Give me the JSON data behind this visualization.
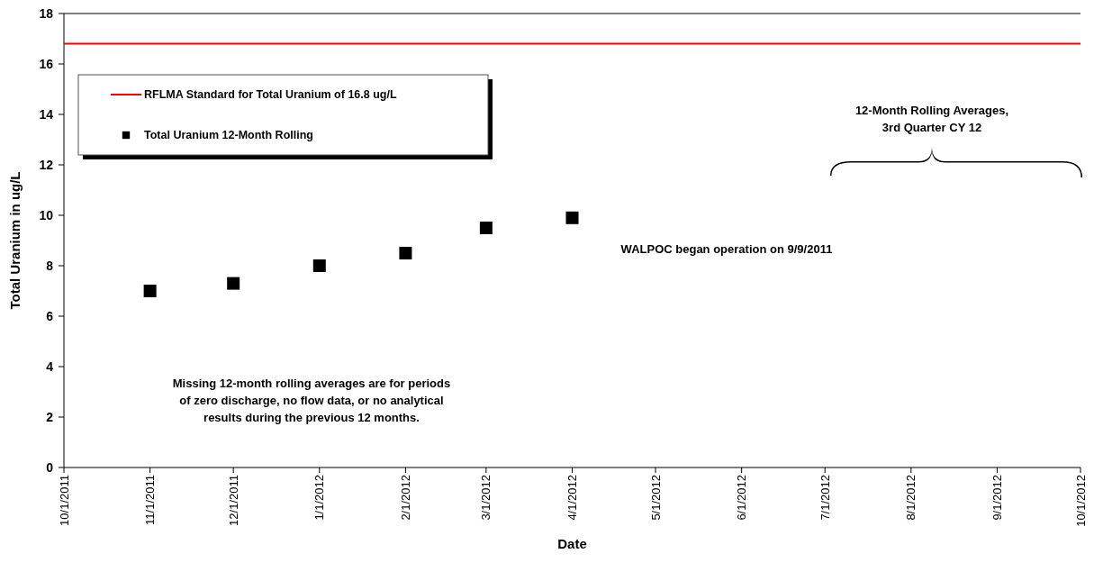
{
  "chart_data": {
    "type": "scatter",
    "xlabel": "Date",
    "ylabel": "Total Uranium in ug/L",
    "x": [
      "2011-11-01",
      "2011-12-01",
      "2012-01-01",
      "2012-02-01",
      "2012-03-01",
      "2012-04-01"
    ],
    "series": [
      {
        "name": "Total Uranium 12-Month Rolling",
        "color": "#000000",
        "values": [
          7.0,
          7.3,
          8.0,
          8.5,
          9.5,
          9.9
        ]
      }
    ],
    "marker": "square",
    "ref_lines": [
      {
        "axis": "y",
        "value": 16.8,
        "label": "RFLMA Standard for Total Uranium of 16.8 ug/L",
        "color": "#ff0000",
        "line_style": "solid"
      }
    ],
    "xlim": [
      "2011-10-01",
      "2012-10-01"
    ],
    "xticks": [
      {
        "value": "2011-10-01",
        "label": "10/1/2011"
      },
      {
        "value": "2011-11-01",
        "label": "11/1/2011"
      },
      {
        "value": "2011-12-01",
        "label": "12/1/2011"
      },
      {
        "value": "2012-01-01",
        "label": "1/1/2012"
      },
      {
        "value": "2012-02-01",
        "label": "2/1/2012"
      },
      {
        "value": "2012-03-01",
        "label": "3/1/2012"
      },
      {
        "value": "2012-04-01",
        "label": "4/1/2012"
      },
      {
        "value": "2012-05-01",
        "label": "5/1/2012"
      },
      {
        "value": "2012-06-01",
        "label": "6/1/2012"
      },
      {
        "value": "2012-07-01",
        "label": "7/1/2012"
      },
      {
        "value": "2012-08-01",
        "label": "8/1/2012"
      },
      {
        "value": "2012-09-01",
        "label": "9/1/2012"
      },
      {
        "value": "2012-10-01",
        "label": "10/1/2012"
      }
    ],
    "ylim": [
      0,
      18
    ],
    "yticks": [
      0,
      2,
      4,
      6,
      8,
      10,
      12,
      14,
      16,
      18
    ],
    "grid": false,
    "legend": "top left",
    "annotations": [
      "Missing 12-month rolling averages  are for periods\nof zero discharge, no flow data, or no analytical\nresults during the previous  12 months.",
      "WALPOC began operation  on 9/9/2011",
      "12-Month Rolling Averages,\n3rd Quarter CY 12"
    ]
  }
}
